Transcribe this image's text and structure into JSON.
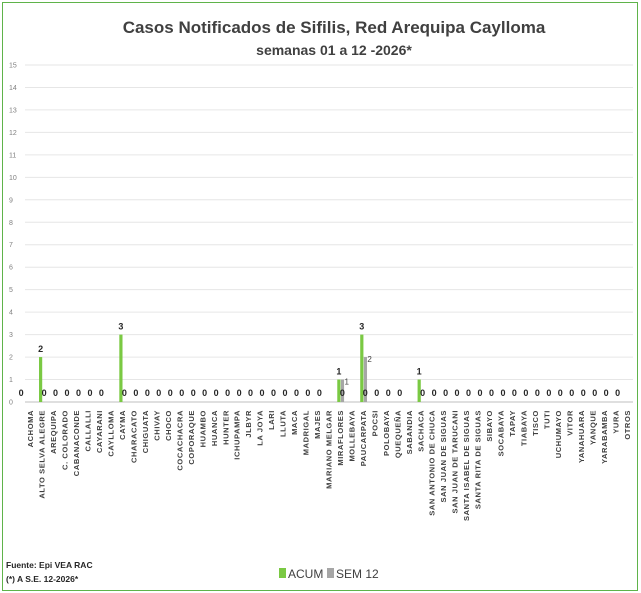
{
  "chart_data": {
    "type": "bar",
    "title": "Casos Notificados de Sifilis, Red Arequipa Caylloma",
    "subtitle": "semanas 01 a 12 -2026*",
    "ylim": [
      0,
      15
    ],
    "yticks": [
      0,
      1,
      2,
      3,
      4,
      5,
      6,
      7,
      8,
      9,
      10,
      11,
      12,
      13,
      14,
      15
    ],
    "grid": true,
    "legend_position": "bottom",
    "categories": [
      "ACHOMA",
      "ALTO SELVA ALEGRE",
      "AREQUIPA",
      "C. COLORADO",
      "CABANACONDE",
      "CALLALLI",
      "CAYARANI",
      "CAYLLOMA",
      "CAYMA",
      "CHARACATO",
      "CHIGUATA",
      "CHIVAY",
      "CHOCO",
      "COCACHACRA",
      "COPORAQUE",
      "HUAMBO",
      "HUANCA",
      "HUNTER",
      "ICHUPAMPA",
      "JLBYR",
      "LA JOYA",
      "LARI",
      "LLUTA",
      "MACA",
      "MADRIGAL",
      "MAJES",
      "MARIANO MELGAR",
      "MIRAFLORES",
      "MOLLEBAYA",
      "PAUCARPATA",
      "POCSI",
      "POLOBAYA",
      "QUEQUEÑA",
      "SABANDIA",
      "SACHACA",
      "SAN ANTONIO DE CHUCA",
      "SAN JUAN DE SIGUAS",
      "SAN JUAN DE TARUCANI",
      "SANTA ISABEL DE SIGUAS",
      "SANTA RITA DE SIGUAS",
      "SIBAYO",
      "SOCABAYA",
      "TAPAY",
      "TIABAYA",
      "TISCO",
      "TUTI",
      "UCHUMAYO",
      "VITOR",
      "YANAHUARA",
      "YANQUE",
      "YARABAMBA",
      "YURA",
      "OTROS"
    ],
    "series": [
      {
        "name": "ACUM",
        "color": "#7ac943",
        "values": [
          0,
          2,
          0,
          0,
          0,
          0,
          0,
          0,
          3,
          0,
          0,
          0,
          0,
          0,
          0,
          0,
          0,
          0,
          0,
          0,
          0,
          0,
          0,
          0,
          0,
          0,
          0,
          1,
          0,
          3,
          0,
          0,
          0,
          0,
          1,
          0,
          0,
          0,
          0,
          0,
          0,
          0,
          0,
          0,
          0,
          0,
          0,
          0,
          0,
          0,
          0,
          0,
          0
        ]
      },
      {
        "name": "SEM 12",
        "color": "#a6a6a6",
        "values": [
          0,
          0,
          0,
          0,
          0,
          0,
          0,
          0,
          0,
          0,
          0,
          0,
          0,
          0,
          0,
          0,
          0,
          0,
          0,
          0,
          0,
          0,
          0,
          0,
          0,
          0,
          0,
          1,
          0,
          2,
          0,
          0,
          0,
          0,
          0,
          0,
          0,
          0,
          0,
          0,
          0,
          0,
          0,
          0,
          0,
          0,
          0,
          0,
          0,
          0,
          0,
          0,
          0
        ]
      }
    ],
    "data_labels": [
      {
        "category": "ACHOMA",
        "series": "ACUM",
        "text": "0"
      },
      {
        "category": "ALTO SELVA ALEGRE",
        "series": "ACUM",
        "text": "2"
      },
      {
        "category": "AREQUIPA",
        "series": "ACUM",
        "text": "0"
      },
      {
        "category": "C. COLORADO",
        "series": "ACUM",
        "text": "0"
      },
      {
        "category": "CABANACONDE",
        "series": "ACUM",
        "text": "0"
      },
      {
        "category": "CALLALLI",
        "series": "ACUM",
        "text": "0"
      },
      {
        "category": "CAYARANI",
        "series": "ACUM",
        "text": "0"
      },
      {
        "category": "CAYLLOMA",
        "series": "ACUM",
        "text": "0"
      },
      {
        "category": "CAYMA",
        "series": "ACUM",
        "text": "3"
      },
      {
        "category": "CHARACATO",
        "series": "ACUM",
        "text": "0"
      },
      {
        "category": "CHIGUATA",
        "series": "ACUM",
        "text": "0"
      },
      {
        "category": "CHIVAY",
        "series": "ACUM",
        "text": "0"
      },
      {
        "category": "CHOCO",
        "series": "ACUM",
        "text": "0"
      },
      {
        "category": "COCACHACRA",
        "series": "ACUM",
        "text": "0"
      },
      {
        "category": "COPORAQUE",
        "series": "ACUM",
        "text": "0"
      },
      {
        "category": "HUAMBO",
        "series": "ACUM",
        "text": "0"
      },
      {
        "category": "HUANCA",
        "series": "ACUM",
        "text": "0"
      },
      {
        "category": "HUNTER",
        "series": "ACUM",
        "text": "0"
      },
      {
        "category": "ICHUPAMPA",
        "series": "ACUM",
        "text": "0"
      },
      {
        "category": "JLBYR",
        "series": "ACUM",
        "text": "0"
      },
      {
        "category": "LA JOYA",
        "series": "ACUM",
        "text": "0"
      },
      {
        "category": "LARI",
        "series": "ACUM",
        "text": "0"
      },
      {
        "category": "LLUTA",
        "series": "ACUM",
        "text": "0"
      },
      {
        "category": "MACA",
        "series": "ACUM",
        "text": "0"
      },
      {
        "category": "MADRIGAL",
        "series": "ACUM",
        "text": "0"
      },
      {
        "category": "MAJES",
        "series": "ACUM",
        "text": "0"
      },
      {
        "category": "MARIANO MELGAR",
        "series": "ACUM",
        "text": "0"
      },
      {
        "category": "MIRAFLORES",
        "series": "ACUM",
        "text": "1"
      },
      {
        "category": "MIRAFLORES",
        "series": "SEM 12",
        "text": "1"
      },
      {
        "category": "MOLLEBAYA",
        "series": "ACUM",
        "text": "0"
      },
      {
        "category": "PAUCARPATA",
        "series": "ACUM",
        "text": "3"
      },
      {
        "category": "PAUCARPATA",
        "series": "SEM 12",
        "text": "2"
      },
      {
        "category": "POCSI",
        "series": "ACUM",
        "text": "0"
      },
      {
        "category": "POLOBAYA",
        "series": "ACUM",
        "text": "0"
      },
      {
        "category": "QUEQUEÑA",
        "series": "ACUM",
        "text": "0"
      },
      {
        "category": "SABANDIA",
        "series": "ACUM",
        "text": "0"
      },
      {
        "category": "SACHACA",
        "series": "ACUM",
        "text": "1"
      },
      {
        "category": "SAN ANTONIO DE CHUCA",
        "series": "ACUM",
        "text": "0"
      },
      {
        "category": "SAN JUAN DE SIGUAS",
        "series": "ACUM",
        "text": "0"
      },
      {
        "category": "SAN JUAN DE TARUCANI",
        "series": "ACUM",
        "text": "0"
      },
      {
        "category": "SANTA ISABEL DE SIGUAS",
        "series": "ACUM",
        "text": "0"
      },
      {
        "category": "SANTA RITA DE SIGUAS",
        "series": "ACUM",
        "text": "0"
      },
      {
        "category": "SIBAYO",
        "series": "ACUM",
        "text": "0"
      },
      {
        "category": "SOCABAYA",
        "series": "ACUM",
        "text": "0"
      },
      {
        "category": "TAPAY",
        "series": "ACUM",
        "text": "0"
      },
      {
        "category": "TIABAYA",
        "series": "ACUM",
        "text": "0"
      },
      {
        "category": "TISCO",
        "series": "ACUM",
        "text": "0"
      },
      {
        "category": "TUTI",
        "series": "ACUM",
        "text": "0"
      },
      {
        "category": "UCHUMAYO",
        "series": "ACUM",
        "text": "0"
      },
      {
        "category": "VITOR",
        "series": "ACUM",
        "text": "0"
      },
      {
        "category": "YANAHUARA",
        "series": "ACUM",
        "text": "0"
      },
      {
        "category": "YANQUE",
        "series": "ACUM",
        "text": "0"
      },
      {
        "category": "YARABAMBA",
        "series": "ACUM",
        "text": "0"
      },
      {
        "category": "YURA",
        "series": "ACUM",
        "text": "0"
      },
      {
        "category": "OTROS",
        "series": "ACUM",
        "text": "0"
      }
    ]
  },
  "footnotes": {
    "source": "Fuente: Epi VEA RAC",
    "note": "(*) A S.E. 12-2026*"
  }
}
